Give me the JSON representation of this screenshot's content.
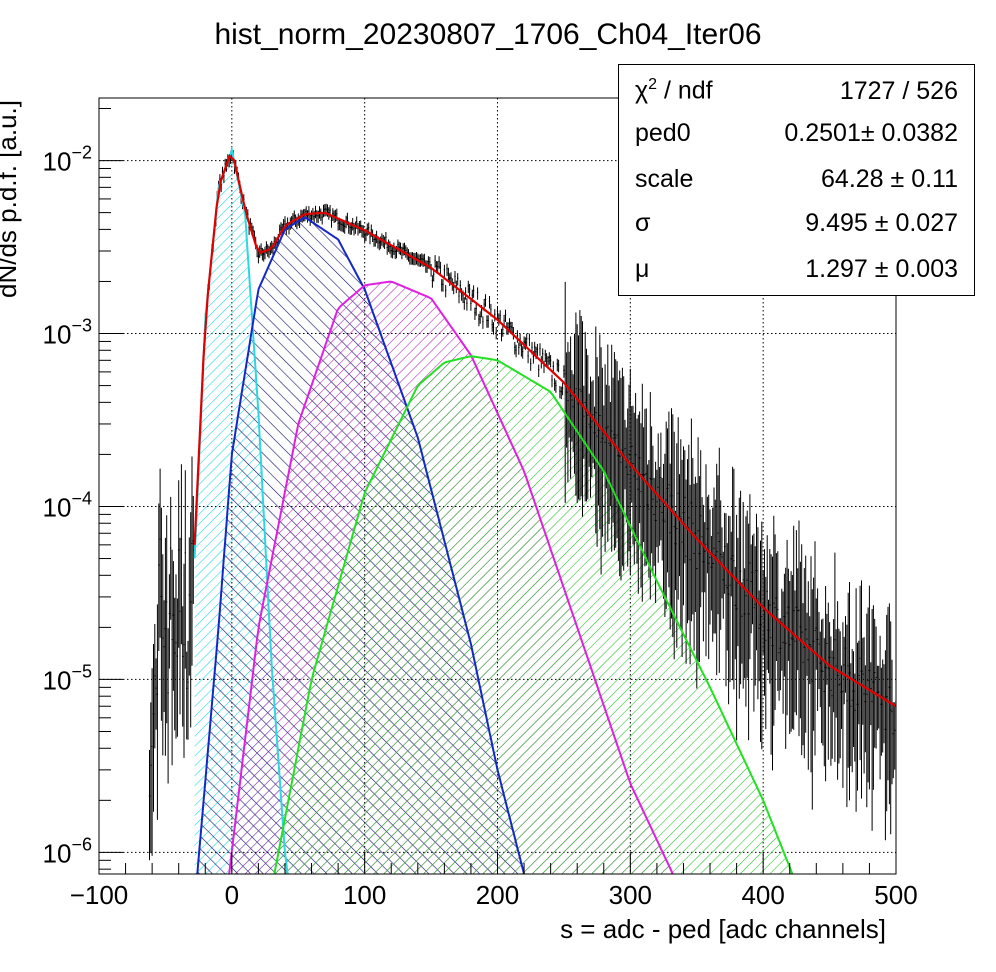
{
  "chart_data": {
    "type": "line",
    "title": "hist_norm_20230807_1706_Ch04_Iter06",
    "xlabel": "s = adc - ped [adc channels]",
    "ylabel": "dN/ds p.d.f. [a.u.]",
    "xlim": [
      -100,
      500
    ],
    "ylim": [
      7.5e-07,
      0.023
    ],
    "yscale": "log",
    "grid": true,
    "x_ticks": [
      "−100",
      "0",
      "100",
      "200",
      "300",
      "400",
      "500"
    ],
    "y_ticks": [
      {
        "base": "10",
        "exp": "−2",
        "value": 0.01
      },
      {
        "base": "10",
        "exp": "−3",
        "value": 0.001
      },
      {
        "base": "10",
        "exp": "−4",
        "value": 0.0001
      },
      {
        "base": "10",
        "exp": "−5",
        "value": 1e-05
      },
      {
        "base": "10",
        "exp": "−6",
        "value": 1e-06
      }
    ],
    "series": [
      {
        "color": "#2bd8e0",
        "hatch": "cyan",
        "x": [
          -28,
          -20,
          -10,
          0,
          10,
          20,
          30,
          40,
          42
        ],
        "y": [
          5e-05,
          0.0012,
          0.007,
          0.0115,
          0.0049,
          0.00035,
          1.2e-05,
          1e-06,
          7.5e-07
        ]
      },
      {
        "color": "#1428c8",
        "hatch": "navy",
        "x": [
          -26,
          -10,
          0,
          20,
          40,
          55,
          80,
          100,
          140,
          180,
          200,
          220
        ],
        "y": [
          7.5e-07,
          2e-05,
          0.0002,
          0.0018,
          0.004,
          0.0047,
          0.0035,
          0.0018,
          0.00025,
          1.6e-05,
          3e-06,
          7.5e-07
        ]
      },
      {
        "color": "#e020e0",
        "hatch": "magenta",
        "x": [
          -2,
          20,
          50,
          80,
          100,
          120,
          150,
          180,
          220,
          260,
          300,
          332
        ],
        "y": [
          7.5e-07,
          2e-05,
          0.0003,
          0.0014,
          0.0019,
          0.002,
          0.0016,
          0.00075,
          0.00016,
          2e-05,
          2.5e-06,
          7.5e-07
        ]
      },
      {
        "color": "#22e022",
        "hatch": "green",
        "x": [
          32,
          60,
          100,
          140,
          160,
          180,
          200,
          240,
          280,
          320,
          360,
          400,
          422
        ],
        "y": [
          7.5e-07,
          1e-05,
          0.00012,
          0.0005,
          0.00068,
          0.00074,
          0.0007,
          0.00046,
          0.00016,
          3.7e-05,
          9e-06,
          2e-06,
          7.5e-07
        ]
      },
      {
        "color": "#e00000",
        "x": [
          -28,
          -20,
          -10,
          0,
          10,
          20,
          30,
          40,
          55,
          70,
          100,
          150,
          200,
          250,
          300,
          350,
          400,
          450,
          500
        ],
        "y": [
          6e-05,
          0.0012,
          0.007,
          0.0115,
          0.0052,
          0.0029,
          0.0031,
          0.0042,
          0.0049,
          0.005,
          0.00395,
          0.0024,
          0.0012,
          0.00052,
          0.000175,
          6.5e-05,
          2.6e-05,
          1.2e-05,
          7e-06
        ]
      }
    ],
    "data_points_description": "black histogram with error bars following the red fit"
  },
  "stats": {
    "rows": [
      {
        "name_main": "χ",
        "name_sup": "2",
        "name_rest": " / ndf",
        "value": "1727 / 526"
      },
      {
        "name_main": "ped0",
        "value": "0.2501± 0.0382"
      },
      {
        "name_main": "scale",
        "value": "64.28 ± 0.11"
      },
      {
        "name_main": "σ",
        "value": "9.495 ± 0.027"
      },
      {
        "name_main": "μ",
        "value": "1.297 ± 0.003"
      }
    ]
  }
}
